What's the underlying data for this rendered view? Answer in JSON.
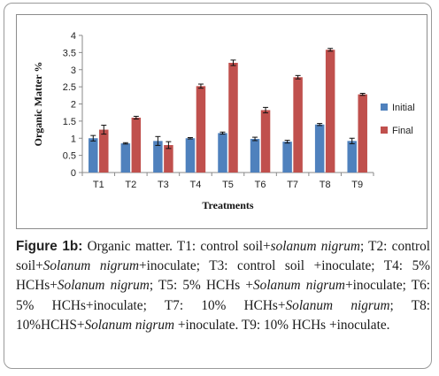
{
  "chart_data": {
    "type": "bar",
    "categories": [
      "T1",
      "T2",
      "T3",
      "T4",
      "T5",
      "T6",
      "T7",
      "T8",
      "T9"
    ],
    "series": [
      {
        "name": "Initial",
        "color": "#4F81BD",
        "values": [
          1.0,
          0.85,
          0.92,
          1.0,
          1.15,
          0.98,
          0.9,
          1.4,
          0.92
        ],
        "errors": [
          0.08,
          0.02,
          0.13,
          0.02,
          0.03,
          0.05,
          0.04,
          0.03,
          0.08
        ]
      },
      {
        "name": "Final",
        "color": "#C0504D",
        "values": [
          1.25,
          1.6,
          0.8,
          2.52,
          3.2,
          1.82,
          2.78,
          3.58,
          2.28
        ],
        "errors": [
          0.13,
          0.04,
          0.1,
          0.06,
          0.08,
          0.08,
          0.05,
          0.04,
          0.03
        ]
      }
    ],
    "title": "",
    "xlabel": "Treatments",
    "ylabel": "Organic Matter %",
    "ylim": [
      0,
      4
    ],
    "yticks": [
      "0",
      "0.5",
      "1",
      "1.5",
      "2",
      "2.5",
      "3",
      "3.5",
      "4"
    ],
    "grid": false,
    "legend_position": "right"
  },
  "caption": {
    "label": "Figure 1b:",
    "parts": [
      {
        "t": " Organic matter. T1: control soil+",
        "i": false
      },
      {
        "t": "solanum nigrum",
        "i": true
      },
      {
        "t": "; T2: control soil+",
        "i": false
      },
      {
        "t": "Solanum nigrum",
        "i": true
      },
      {
        "t": "+inoculate; T3: control soil +inoculate; T4: 5% HCHs+",
        "i": false
      },
      {
        "t": "Solanum nigrum",
        "i": true
      },
      {
        "t": "; T5: 5% HCHs +",
        "i": false
      },
      {
        "t": "Solanum nigrum",
        "i": true
      },
      {
        "t": "+inoculate; T6: 5% HCHs+inoculate; T7: 10% HCHs+",
        "i": false
      },
      {
        "t": "Solanum nigrum",
        "i": true
      },
      {
        "t": "; T8: 10%HCHS+",
        "i": false
      },
      {
        "t": "Solanum nigrum",
        "i": true
      },
      {
        "t": " +inoculate. T9: 10% HCHs +inoculate.",
        "i": false
      }
    ]
  }
}
